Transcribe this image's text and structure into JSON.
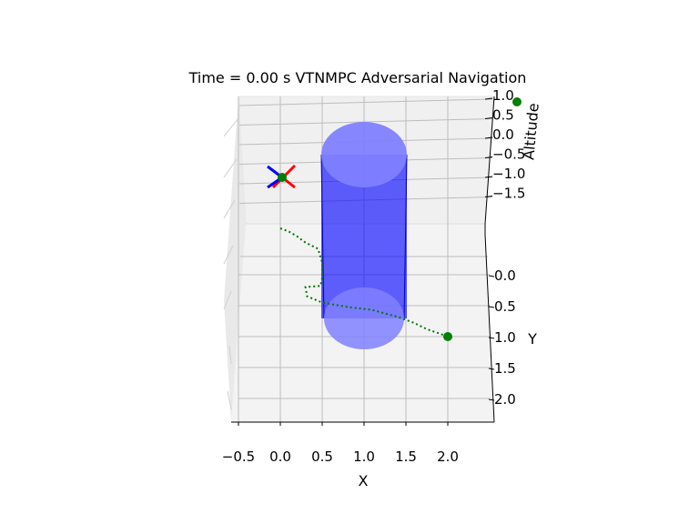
{
  "chart_data": {
    "type": "scatter",
    "title": "Time = 0.00 s    VTNMPC Adversarial Navigation",
    "xlabel": "X",
    "ylabel": "Y",
    "zlabel": "Altitude",
    "xticks": [
      "−0.5",
      "0.0",
      "0.5",
      "1.0",
      "1.5",
      "2.0"
    ],
    "yticks": [
      "0.0",
      "0.5",
      "1.0",
      "1.5",
      "2.0"
    ],
    "zticks": [
      "1.0",
      "0.5",
      "0.0",
      "−0.5",
      "−1.0",
      "−1.5"
    ],
    "xlim": [
      -0.6,
      2.55
    ],
    "ylim": [
      -0.1,
      2.3
    ],
    "grid": true,
    "obstacle": {
      "shape": "cylinder",
      "center_x": 1.0,
      "center_y": 0.75,
      "radius": 0.5,
      "color": "#0000ff"
    },
    "path": {
      "style": "dotted",
      "color": "#007700",
      "points": [
        [
          0.0,
          -0.75
        ],
        [
          0.1,
          -0.7
        ],
        [
          0.2,
          -0.62
        ],
        [
          0.3,
          -0.52
        ],
        [
          0.45,
          -0.42
        ],
        [
          0.5,
          -0.2
        ],
        [
          0.5,
          0.05
        ],
        [
          0.48,
          0.18
        ],
        [
          0.3,
          0.2
        ],
        [
          0.32,
          0.35
        ],
        [
          0.5,
          0.45
        ],
        [
          0.8,
          0.52
        ],
        [
          1.1,
          0.57
        ],
        [
          1.4,
          0.68
        ],
        [
          1.6,
          0.78
        ],
        [
          1.75,
          0.88
        ],
        [
          1.9,
          0.95
        ],
        [
          2.0,
          1.0
        ]
      ]
    },
    "start": {
      "x": 2.0,
      "y": 1.0,
      "color": "#008000"
    },
    "drone": {
      "x": 0.0,
      "y": -0.75,
      "arm_colors": [
        "#ff0000",
        "#0000ff"
      ],
      "center_color": "#008000"
    },
    "altitude_marker": {
      "color": "#008000"
    }
  }
}
